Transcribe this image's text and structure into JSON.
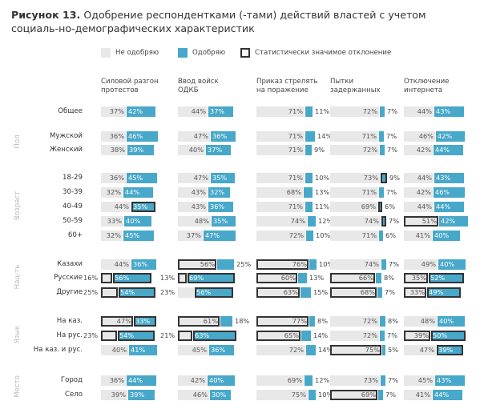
{
  "title": {
    "bold": "Рисунок 13.",
    "text": " Одобрение респондентками (-тами) действий властей с учетом социаль-но-демографических характеристик"
  },
  "legend": {
    "disapprove": "Не одобряю",
    "approve": "Одобряю",
    "significant": "Статистически значимое отклонение"
  },
  "colors": {
    "disapprove": "#e8e8e8",
    "approve": "#47a8c9",
    "outline": "#333333"
  },
  "chart_data": {
    "type": "bar",
    "columns": [
      "Силовой разгон\nпротестов",
      "Ввод войск\nОДКБ",
      "Приказ стрелять\nна поражение",
      "Пытки\nзадержанных",
      "Отключение\nинтернета"
    ],
    "groups": [
      {
        "name": "",
        "rows": [
          "Общее"
        ]
      },
      {
        "name": "Пол",
        "rows": [
          "Мужской",
          "Женский"
        ]
      },
      {
        "name": "Возраст",
        "rows": [
          "18-29",
          "30-39",
          "40-49",
          "50-59",
          "60+"
        ]
      },
      {
        "name": "Нац-ть",
        "rows": [
          "Казахи",
          "Русские",
          "Другие"
        ]
      },
      {
        "name": "Язык",
        "rows": [
          "На каз.",
          "На рус.",
          "На каз. и рус."
        ]
      },
      {
        "name": "Место",
        "rows": [
          "Город",
          "Село"
        ]
      }
    ],
    "rows": [
      {
        "label": "Общее",
        "values": [
          [
            37,
            42,
            "",
            ""
          ],
          [
            44,
            37,
            "",
            ""
          ],
          [
            71,
            11,
            "",
            ""
          ],
          [
            72,
            7,
            "",
            ""
          ],
          [
            44,
            43,
            "",
            ""
          ]
        ]
      },
      {
        "label": "Мужской",
        "values": [
          [
            36,
            46,
            "",
            ""
          ],
          [
            47,
            36,
            "",
            ""
          ],
          [
            71,
            14,
            "",
            ""
          ],
          [
            71,
            7,
            "",
            ""
          ],
          [
            46,
            42,
            "",
            ""
          ]
        ]
      },
      {
        "label": "Женский",
        "values": [
          [
            38,
            39,
            "",
            ""
          ],
          [
            40,
            37,
            "",
            ""
          ],
          [
            71,
            9,
            "",
            ""
          ],
          [
            72,
            7,
            "",
            ""
          ],
          [
            42,
            44,
            "",
            ""
          ]
        ]
      },
      {
        "label": "18-29",
        "values": [
          [
            36,
            45,
            "",
            ""
          ],
          [
            47,
            35,
            "",
            ""
          ],
          [
            71,
            10,
            "",
            ""
          ],
          [
            73,
            9,
            "",
            "a"
          ],
          [
            44,
            43,
            "",
            ""
          ]
        ]
      },
      {
        "label": "30-39",
        "values": [
          [
            32,
            44,
            "",
            ""
          ],
          [
            43,
            32,
            "",
            ""
          ],
          [
            68,
            13,
            "",
            ""
          ],
          [
            71,
            7,
            "",
            ""
          ],
          [
            42,
            46,
            "",
            ""
          ]
        ]
      },
      {
        "label": "40-49",
        "values": [
          [
            44,
            35,
            "",
            "a"
          ],
          [
            43,
            36,
            "",
            ""
          ],
          [
            71,
            11,
            "",
            ""
          ],
          [
            69,
            6,
            "",
            "a"
          ],
          [
            44,
            44,
            "",
            ""
          ]
        ]
      },
      {
        "label": "50-59",
        "values": [
          [
            33,
            40,
            "",
            ""
          ],
          [
            48,
            35,
            "",
            ""
          ],
          [
            74,
            12,
            "",
            ""
          ],
          [
            74,
            7,
            "",
            "a"
          ],
          [
            51,
            42,
            "d",
            ""
          ]
        ]
      },
      {
        "label": "60+",
        "values": [
          [
            32,
            45,
            "",
            ""
          ],
          [
            37,
            47,
            "",
            ""
          ],
          [
            72,
            10,
            "",
            ""
          ],
          [
            71,
            6,
            "",
            ""
          ],
          [
            41,
            40,
            "",
            ""
          ]
        ]
      },
      {
        "label": "Казахи",
        "values": [
          [
            44,
            36,
            "",
            ""
          ],
          [
            56,
            25,
            "d",
            ""
          ],
          [
            76,
            10,
            "d",
            ""
          ],
          [
            74,
            7,
            "",
            ""
          ],
          [
            49,
            40,
            "",
            ""
          ]
        ]
      },
      {
        "label": "Русские",
        "values": [
          [
            16,
            56,
            "d",
            "a"
          ],
          [
            13,
            69,
            "d",
            "a"
          ],
          [
            60,
            13,
            "d",
            ""
          ],
          [
            66,
            8,
            "d",
            ""
          ],
          [
            35,
            52,
            "d",
            "a"
          ]
        ]
      },
      {
        "label": "Другие",
        "values": [
          [
            25,
            54,
            "d",
            "a"
          ],
          [
            23,
            56,
            "",
            "a"
          ],
          [
            63,
            15,
            "d",
            ""
          ],
          [
            68,
            7,
            "d",
            ""
          ],
          [
            33,
            49,
            "d",
            "a"
          ]
        ]
      },
      {
        "label": "На каз.",
        "values": [
          [
            47,
            33,
            "d",
            "a"
          ],
          [
            61,
            18,
            "d",
            ""
          ],
          [
            77,
            8,
            "d",
            ""
          ],
          [
            72,
            8,
            "",
            ""
          ],
          [
            48,
            40,
            "",
            ""
          ]
        ]
      },
      {
        "label": "На рус.",
        "values": [
          [
            23,
            54,
            "d",
            "a"
          ],
          [
            21,
            63,
            "d",
            "a"
          ],
          [
            65,
            14,
            "d",
            ""
          ],
          [
            72,
            7,
            "",
            ""
          ],
          [
            39,
            50,
            "d",
            "a"
          ]
        ]
      },
      {
        "label": "На каз. и рус.",
        "values": [
          [
            40,
            41,
            "",
            ""
          ],
          [
            45,
            36,
            "",
            ""
          ],
          [
            72,
            14,
            "",
            ""
          ],
          [
            75,
            5,
            "d",
            ""
          ],
          [
            47,
            39,
            "",
            "a"
          ]
        ]
      },
      {
        "label": "Город",
        "values": [
          [
            36,
            44,
            "",
            ""
          ],
          [
            42,
            40,
            "",
            ""
          ],
          [
            69,
            12,
            "",
            ""
          ],
          [
            73,
            7,
            "",
            ""
          ],
          [
            45,
            43,
            "",
            ""
          ]
        ]
      },
      {
        "label": "Село",
        "values": [
          [
            39,
            39,
            "",
            ""
          ],
          [
            46,
            30,
            "",
            ""
          ],
          [
            75,
            10,
            "",
            ""
          ],
          [
            69,
            7,
            "d",
            ""
          ],
          [
            41,
            44,
            "",
            ""
          ]
        ]
      }
    ],
    "value_format": "%",
    "note": "values: [disapprove %, approve %, 'd' = disapprove significant, 'a' = approve significant]"
  }
}
